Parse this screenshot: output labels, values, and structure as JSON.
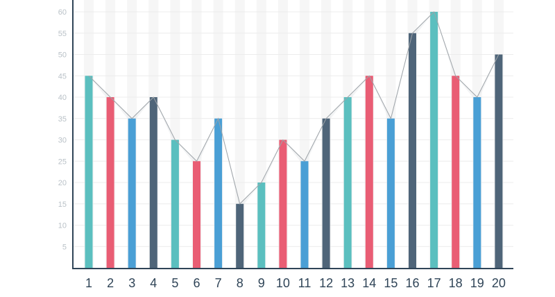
{
  "chart_data": {
    "type": "bar",
    "categories": [
      "1",
      "2",
      "3",
      "4",
      "5",
      "6",
      "7",
      "8",
      "9",
      "10",
      "11",
      "12",
      "13",
      "14",
      "15",
      "16",
      "17",
      "18",
      "19",
      "20"
    ],
    "values": [
      45,
      40,
      35,
      40,
      30,
      25,
      35,
      15,
      20,
      30,
      25,
      35,
      40,
      45,
      35,
      55,
      60,
      45,
      40,
      50
    ],
    "colors": [
      "#5bbfbf",
      "#e95d74",
      "#4a9fd5",
      "#4f6579",
      "#5bbfbf",
      "#e95d74",
      "#4a9fd5",
      "#4f6579",
      "#5bbfbf",
      "#e95d74",
      "#4a9fd5",
      "#4f6579",
      "#5bbfbf",
      "#e95d74",
      "#4a9fd5",
      "#4f6579",
      "#5bbfbf",
      "#e95d74",
      "#4a9fd5",
      "#4f6579"
    ],
    "yticks": [
      5,
      10,
      15,
      20,
      25,
      30,
      35,
      40,
      45,
      50,
      55,
      60
    ],
    "ylim": [
      0,
      60
    ],
    "grid": true,
    "title": "",
    "xlabel": "",
    "ylabel": ""
  }
}
